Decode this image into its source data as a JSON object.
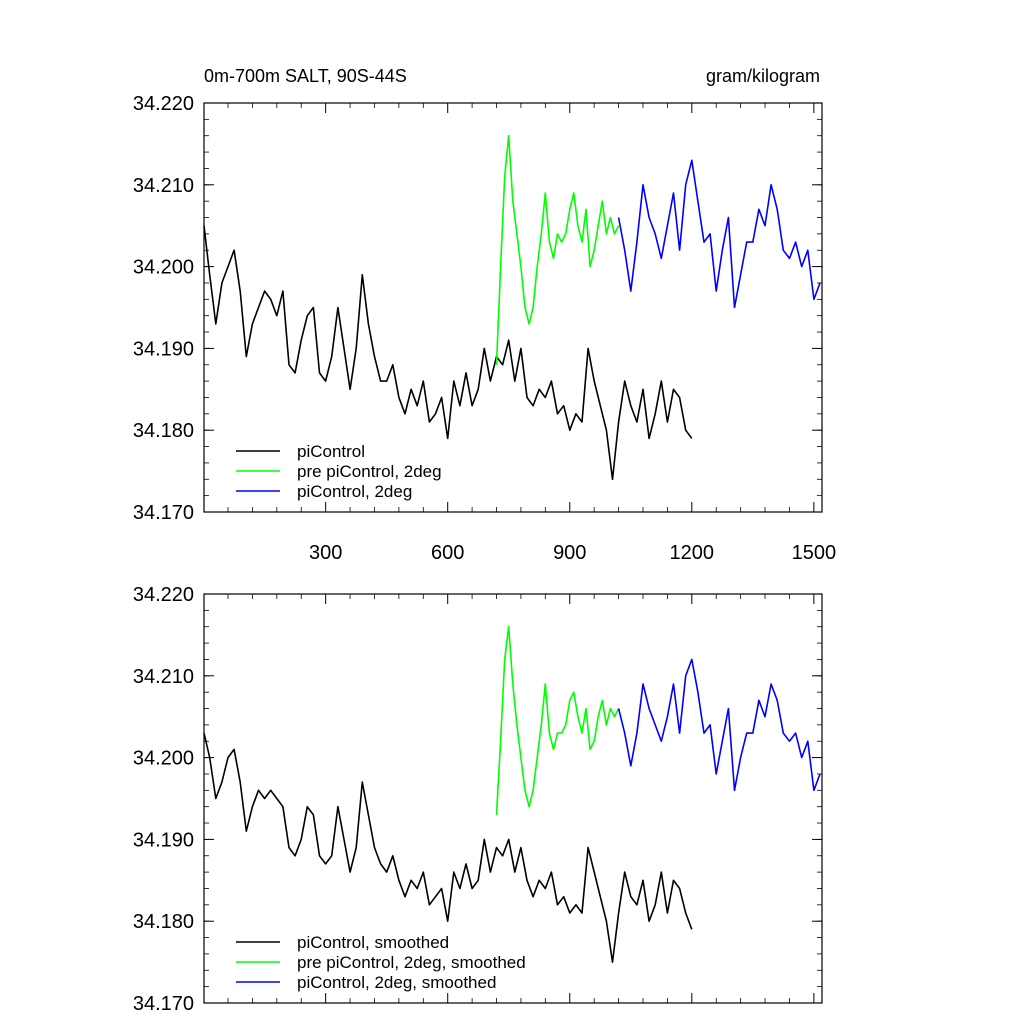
{
  "chart_data": [
    {
      "type": "line",
      "title": "0m-700m SALT, 90S-44S",
      "units": "gram/kilogram",
      "xlim": [
        1,
        1520
      ],
      "ylim": [
        34.17,
        34.22
      ],
      "x_ticks": [
        300,
        600,
        900,
        1200,
        1500
      ],
      "x_tick_labels": [
        "300",
        "600",
        "900",
        "1200",
        "1500"
      ],
      "y_ticks": [
        34.17,
        34.18,
        34.19,
        34.2,
        34.21,
        34.22
      ],
      "y_tick_labels": [
        "34.170",
        "34.180",
        "34.190",
        "34.200",
        "34.210",
        "34.220"
      ],
      "legend_position": "bottom-left",
      "series": [
        {
          "name": "piControl",
          "color": "#000000",
          "x": [
            1,
            15,
            30,
            45,
            60,
            75,
            90,
            105,
            120,
            135,
            150,
            165,
            180,
            195,
            210,
            225,
            240,
            255,
            270,
            285,
            300,
            315,
            330,
            345,
            360,
            375,
            390,
            405,
            420,
            435,
            450,
            465,
            480,
            495,
            510,
            525,
            540,
            555,
            570,
            585,
            600,
            615,
            630,
            645,
            660,
            675,
            690,
            705,
            720,
            735,
            750,
            765,
            780,
            795,
            810,
            825,
            840,
            855,
            870,
            885,
            900,
            915,
            930,
            945,
            960,
            975,
            990,
            1005,
            1020,
            1035,
            1050,
            1065,
            1080,
            1095,
            1110,
            1125,
            1140,
            1155,
            1170,
            1185,
            1200
          ],
          "y": [
            34.205,
            34.199,
            34.193,
            34.198,
            34.2,
            34.202,
            34.197,
            34.189,
            34.193,
            34.195,
            34.197,
            34.196,
            34.194,
            34.197,
            34.188,
            34.187,
            34.191,
            34.194,
            34.195,
            34.187,
            34.186,
            34.189,
            34.195,
            34.19,
            34.185,
            34.19,
            34.199,
            34.193,
            34.189,
            34.186,
            34.186,
            34.188,
            34.184,
            34.182,
            34.185,
            34.183,
            34.186,
            34.181,
            34.182,
            34.184,
            34.179,
            34.186,
            34.183,
            34.187,
            34.183,
            34.185,
            34.19,
            34.186,
            34.189,
            34.188,
            34.191,
            34.186,
            34.19,
            34.184,
            34.183,
            34.185,
            34.184,
            34.186,
            34.182,
            34.183,
            34.18,
            34.182,
            34.181,
            34.19,
            34.186,
            34.183,
            34.18,
            34.174,
            34.181,
            34.186,
            34.183,
            34.181,
            34.185,
            34.179,
            34.182,
            34.186,
            34.181,
            34.185,
            34.184,
            34.18,
            34.179
          ]
        },
        {
          "name": "pre piControl, 2deg",
          "color": "#00ff00",
          "x": [
            720,
            730,
            740,
            750,
            760,
            770,
            780,
            790,
            800,
            810,
            820,
            830,
            840,
            850,
            860,
            870,
            880,
            890,
            900,
            910,
            920,
            930,
            940,
            950,
            960,
            970,
            980,
            990,
            1000,
            1010,
            1020
          ],
          "y": [
            34.188,
            34.2,
            34.211,
            34.216,
            34.208,
            34.204,
            34.2,
            34.195,
            34.193,
            34.195,
            34.2,
            34.204,
            34.209,
            34.203,
            34.201,
            34.204,
            34.203,
            34.204,
            34.207,
            34.209,
            34.205,
            34.203,
            34.207,
            34.2,
            34.202,
            34.205,
            34.208,
            34.204,
            34.206,
            34.204,
            34.205
          ]
        },
        {
          "name": "piControl, 2deg",
          "color": "#0000ff",
          "x": [
            1020,
            1035,
            1050,
            1065,
            1080,
            1095,
            1110,
            1125,
            1140,
            1155,
            1170,
            1185,
            1200,
            1215,
            1230,
            1245,
            1260,
            1275,
            1290,
            1305,
            1320,
            1335,
            1350,
            1365,
            1380,
            1395,
            1410,
            1425,
            1440,
            1455,
            1470,
            1485,
            1500,
            1515
          ],
          "y": [
            34.206,
            34.202,
            34.197,
            34.203,
            34.21,
            34.206,
            34.204,
            34.201,
            34.205,
            34.209,
            34.202,
            34.21,
            34.213,
            34.208,
            34.203,
            34.204,
            34.197,
            34.202,
            34.206,
            34.195,
            34.199,
            34.203,
            34.203,
            34.207,
            34.205,
            34.21,
            34.207,
            34.202,
            34.201,
            34.203,
            34.2,
            34.202,
            34.196,
            34.198
          ]
        }
      ]
    },
    {
      "type": "line",
      "xlim": [
        1,
        1520
      ],
      "ylim": [
        34.17,
        34.22
      ],
      "x_ticks": [
        300,
        600,
        900,
        1200,
        1500
      ],
      "y_ticks": [
        34.17,
        34.18,
        34.19,
        34.2,
        34.21,
        34.22
      ],
      "y_tick_labels": [
        "34.170",
        "34.180",
        "34.190",
        "34.200",
        "34.210",
        "34.220"
      ],
      "legend_position": "bottom-left",
      "series": [
        {
          "name": "piControl, smoothed",
          "color": "#000000",
          "x": [
            1,
            15,
            30,
            45,
            60,
            75,
            90,
            105,
            120,
            135,
            150,
            165,
            180,
            195,
            210,
            225,
            240,
            255,
            270,
            285,
            300,
            315,
            330,
            345,
            360,
            375,
            390,
            405,
            420,
            435,
            450,
            465,
            480,
            495,
            510,
            525,
            540,
            555,
            570,
            585,
            600,
            615,
            630,
            645,
            660,
            675,
            690,
            705,
            720,
            735,
            750,
            765,
            780,
            795,
            810,
            825,
            840,
            855,
            870,
            885,
            900,
            915,
            930,
            945,
            960,
            975,
            990,
            1005,
            1020,
            1035,
            1050,
            1065,
            1080,
            1095,
            1110,
            1125,
            1140,
            1155,
            1170,
            1185,
            1200
          ],
          "y": [
            34.203,
            34.2,
            34.195,
            34.197,
            34.2,
            34.201,
            34.197,
            34.191,
            34.194,
            34.196,
            34.195,
            34.196,
            34.195,
            34.194,
            34.189,
            34.188,
            34.19,
            34.194,
            34.193,
            34.188,
            34.187,
            34.188,
            34.194,
            34.19,
            34.186,
            34.189,
            34.197,
            34.193,
            34.189,
            34.187,
            34.186,
            34.188,
            34.185,
            34.183,
            34.185,
            34.184,
            34.186,
            34.182,
            34.183,
            34.184,
            34.18,
            34.186,
            34.184,
            34.187,
            34.184,
            34.185,
            34.19,
            34.186,
            34.189,
            34.188,
            34.19,
            34.186,
            34.189,
            34.185,
            34.183,
            34.185,
            34.184,
            34.186,
            34.182,
            34.183,
            34.181,
            34.182,
            34.181,
            34.189,
            34.186,
            34.183,
            34.18,
            34.175,
            34.181,
            34.186,
            34.183,
            34.182,
            34.185,
            34.18,
            34.182,
            34.186,
            34.181,
            34.185,
            34.184,
            34.181,
            34.179
          ]
        },
        {
          "name": "pre piControl, 2deg, smoothed",
          "color": "#00ff00",
          "x": [
            720,
            730,
            740,
            750,
            760,
            770,
            780,
            790,
            800,
            810,
            820,
            830,
            840,
            850,
            860,
            870,
            880,
            890,
            900,
            910,
            920,
            930,
            940,
            950,
            960,
            970,
            980,
            990,
            1000,
            1010,
            1020
          ],
          "y": [
            34.193,
            34.202,
            34.212,
            34.216,
            34.209,
            34.204,
            34.2,
            34.196,
            34.194,
            34.196,
            34.2,
            34.204,
            34.209,
            34.203,
            34.201,
            34.203,
            34.203,
            34.204,
            34.207,
            34.208,
            34.205,
            34.203,
            34.206,
            34.201,
            34.202,
            34.205,
            34.207,
            34.204,
            34.206,
            34.205,
            34.206
          ]
        },
        {
          "name": "piControl, 2deg, smoothed",
          "color": "#0000ff",
          "x": [
            1020,
            1035,
            1050,
            1065,
            1080,
            1095,
            1110,
            1125,
            1140,
            1155,
            1170,
            1185,
            1200,
            1215,
            1230,
            1245,
            1260,
            1275,
            1290,
            1305,
            1320,
            1335,
            1350,
            1365,
            1380,
            1395,
            1410,
            1425,
            1440,
            1455,
            1470,
            1485,
            1500,
            1515
          ],
          "y": [
            34.206,
            34.203,
            34.199,
            34.203,
            34.209,
            34.206,
            34.204,
            34.202,
            34.205,
            34.209,
            34.203,
            34.21,
            34.212,
            34.208,
            34.203,
            34.204,
            34.198,
            34.202,
            34.206,
            34.196,
            34.2,
            34.203,
            34.203,
            34.207,
            34.205,
            34.209,
            34.207,
            34.203,
            34.202,
            34.203,
            34.2,
            34.202,
            34.196,
            34.198
          ]
        }
      ]
    }
  ]
}
